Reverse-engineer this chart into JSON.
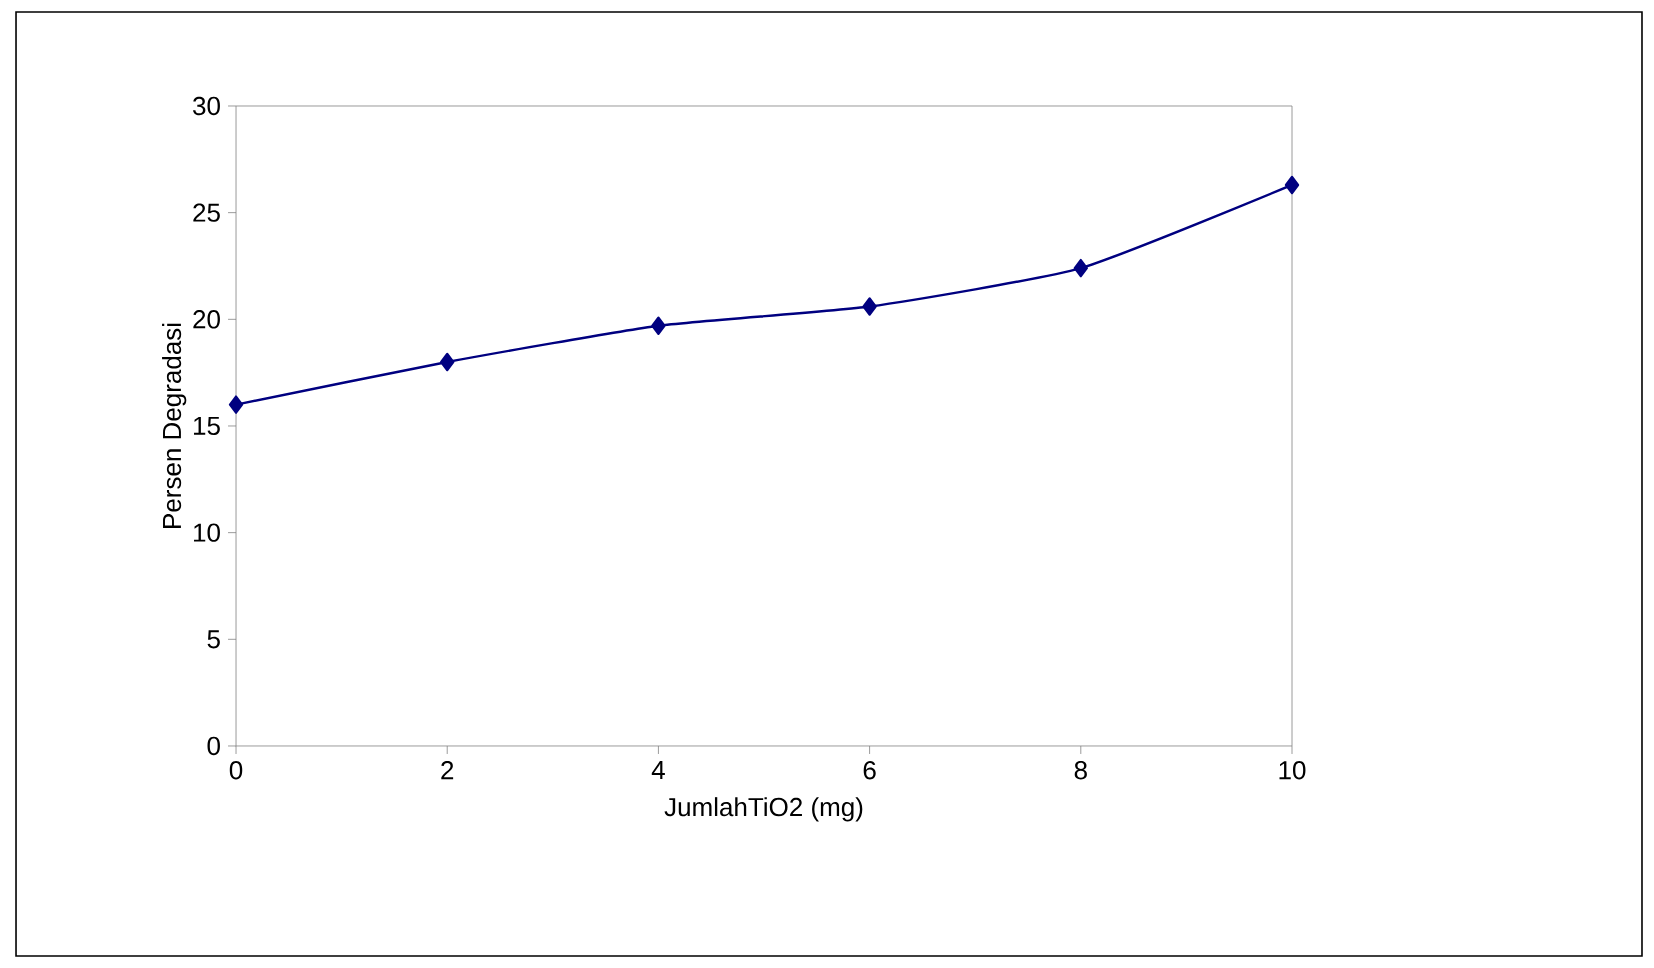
{
  "chart_data": {
    "type": "line",
    "xlabel": "JumlahTiO2 (mg)",
    "ylabel": "Persen Degradasi",
    "x": [
      0,
      2,
      4,
      6,
      8,
      10
    ],
    "series": [
      {
        "color": "#000080",
        "values": [
          16.0,
          18.0,
          19.7,
          20.6,
          22.4,
          26.3
        ]
      }
    ],
    "xlim": [
      0,
      10
    ],
    "xticks": [
      0,
      2,
      4,
      6,
      8,
      10
    ],
    "ylim": [
      0,
      30
    ],
    "yticks": [
      0,
      5,
      10,
      15,
      20,
      25,
      30
    ],
    "marker": "diamond",
    "line_style": "solid",
    "grid": false
  }
}
